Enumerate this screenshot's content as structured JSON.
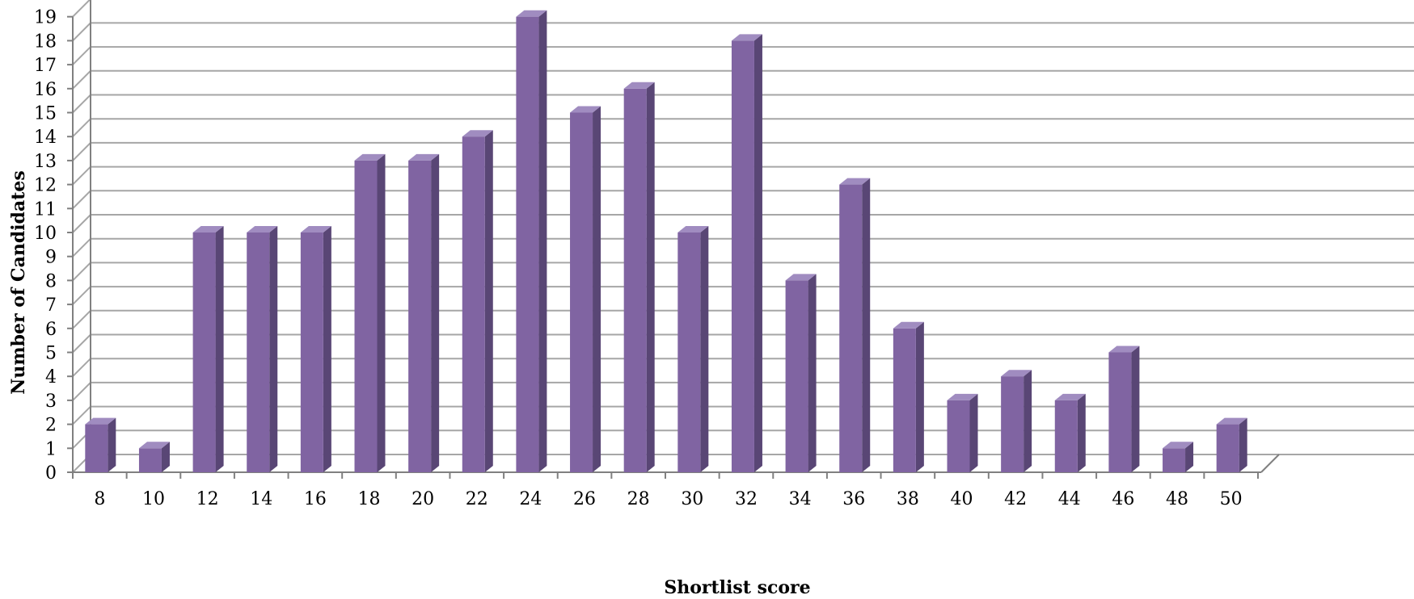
{
  "chart_data": {
    "type": "bar",
    "style": "3d-column",
    "xlabel": "Shortlist score",
    "ylabel": "Number of Candidates",
    "categories": [
      "8",
      "10",
      "12",
      "14",
      "16",
      "18",
      "20",
      "22",
      "24",
      "26",
      "28",
      "30",
      "32",
      "34",
      "36",
      "38",
      "40",
      "42",
      "44",
      "46",
      "48",
      "50"
    ],
    "values": [
      2,
      1,
      10,
      10,
      10,
      13,
      13,
      14,
      19,
      15,
      16,
      10,
      18,
      8,
      12,
      6,
      3,
      4,
      3,
      5,
      1,
      2
    ],
    "yticks": [
      "0",
      "1",
      "2",
      "3",
      "4",
      "5",
      "6",
      "7",
      "8",
      "9",
      "10",
      "11",
      "12",
      "13",
      "14",
      "15",
      "16",
      "17",
      "18",
      "19"
    ],
    "ylim": [
      0,
      19
    ],
    "grid": true,
    "legend": "none",
    "colors": {
      "bar_front": "#8064a2",
      "bar_side": "#594675",
      "bar_top": "#a08cc0",
      "gridline": "#a6a6a6",
      "axis": "#808080"
    }
  }
}
